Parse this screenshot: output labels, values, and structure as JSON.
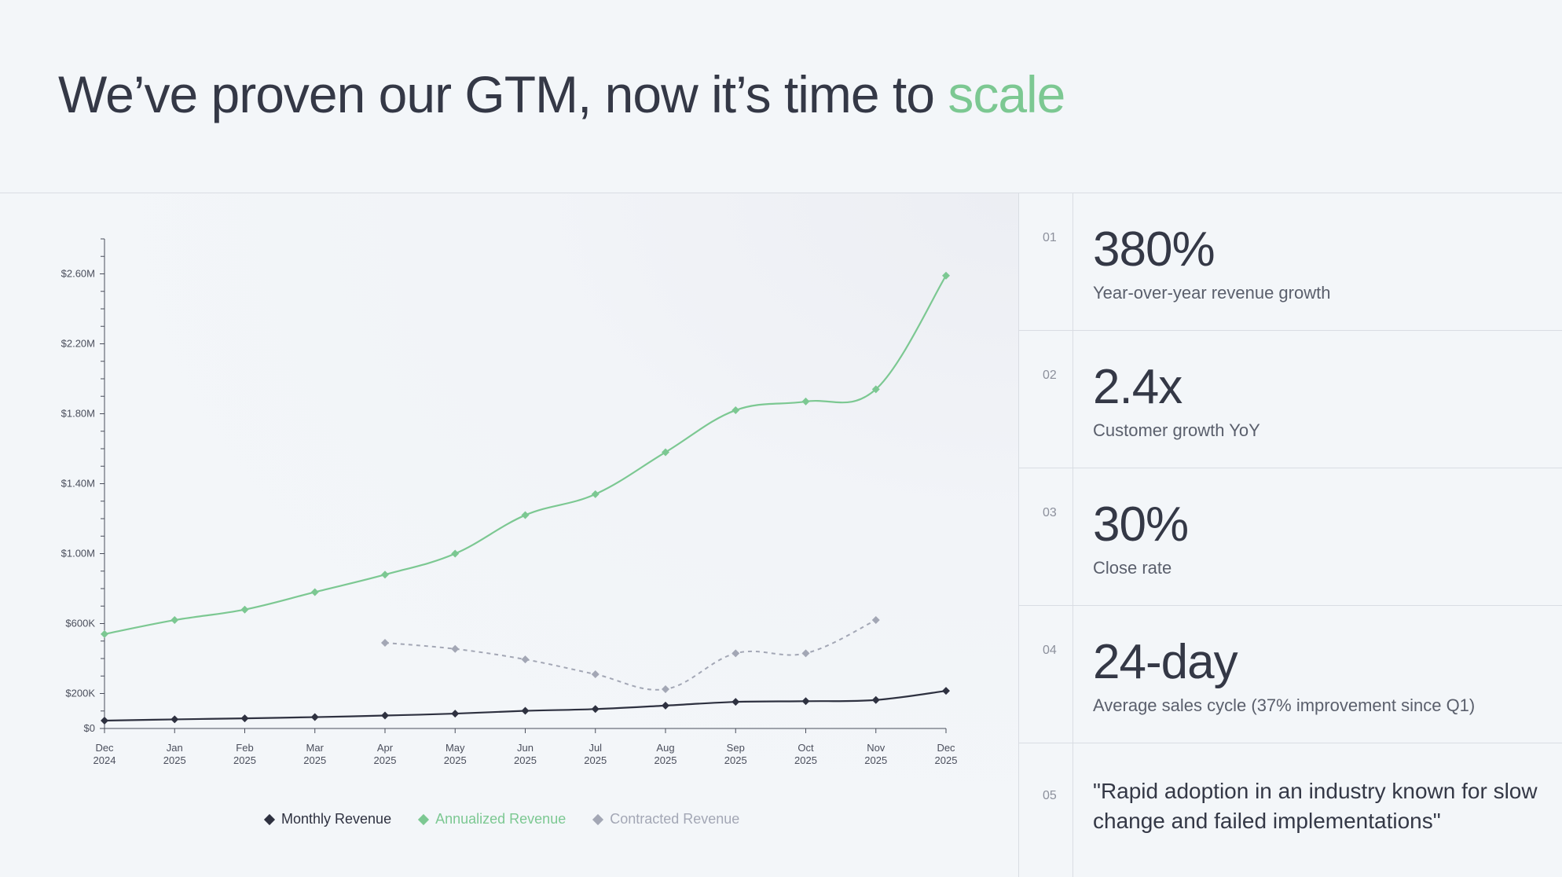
{
  "header": {
    "title_main": "We’ve proven our GTM, now it’s time to ",
    "title_accent": "scale"
  },
  "colors": {
    "accent": "#7cc892",
    "monthly": "#2e3140",
    "annualized": "#7cc892",
    "contracted": "#a3a7b5",
    "text": "#343846"
  },
  "chart_data": {
    "type": "line",
    "title": "",
    "xlabel": "",
    "ylabel": "",
    "ylim": [
      0,
      2800000
    ],
    "grid": false,
    "categories": [
      [
        "Dec",
        "2024"
      ],
      [
        "Jan",
        "2025"
      ],
      [
        "Feb",
        "2025"
      ],
      [
        "Mar",
        "2025"
      ],
      [
        "Apr",
        "2025"
      ],
      [
        "May",
        "2025"
      ],
      [
        "Jun",
        "2025"
      ],
      [
        "Jul",
        "2025"
      ],
      [
        "Aug",
        "2025"
      ],
      [
        "Sep",
        "2025"
      ],
      [
        "Oct",
        "2025"
      ],
      [
        "Nov",
        "2025"
      ],
      [
        "Dec",
        "2025"
      ]
    ],
    "y_ticks": [
      {
        "value": 0,
        "label": "$0"
      },
      {
        "value": 200000,
        "label": "$200K"
      },
      {
        "value": 600000,
        "label": "$600K"
      },
      {
        "value": 1000000,
        "label": "$1.00M"
      },
      {
        "value": 1400000,
        "label": "$1.40M"
      },
      {
        "value": 1800000,
        "label": "$1.80M"
      },
      {
        "value": 2200000,
        "label": "$2.20M"
      },
      {
        "value": 2600000,
        "label": "$2.60M"
      }
    ],
    "minor_tick_step": 100000,
    "series": [
      {
        "name": "Monthly Revenue",
        "color": "#2e3140",
        "style": "solid",
        "values": [
          45000,
          52000,
          58000,
          65000,
          74000,
          85000,
          101000,
          111000,
          131000,
          152000,
          156000,
          163000,
          215000
        ]
      },
      {
        "name": "Annualized Revenue",
        "color": "#7cc892",
        "style": "solid",
        "values": [
          540000,
          620000,
          680000,
          780000,
          880000,
          1000000,
          1220000,
          1340000,
          1580000,
          1820000,
          1870000,
          1940000,
          2590000
        ]
      },
      {
        "name": "Contracted Revenue",
        "color": "#a3a7b5",
        "style": "dashed",
        "values": [
          null,
          null,
          null,
          null,
          490000,
          455000,
          395000,
          310000,
          225000,
          430000,
          430000,
          620000,
          null
        ]
      }
    ],
    "legend": [
      "Monthly Revenue",
      "Annualized Revenue",
      "Contracted Revenue"
    ]
  },
  "stats": [
    {
      "num": "01",
      "value": "380%",
      "label": "Year-over-year revenue growth"
    },
    {
      "num": "02",
      "value": "2.4x",
      "label": "Customer growth YoY"
    },
    {
      "num": "03",
      "value": "30%",
      "label": "Close rate"
    },
    {
      "num": "04",
      "value": "24-day",
      "label": "Average sales cycle (37% improvement since Q1)"
    },
    {
      "num": "05",
      "quote": "\"Rapid adoption in an industry known for slow change and failed implementations\""
    }
  ]
}
